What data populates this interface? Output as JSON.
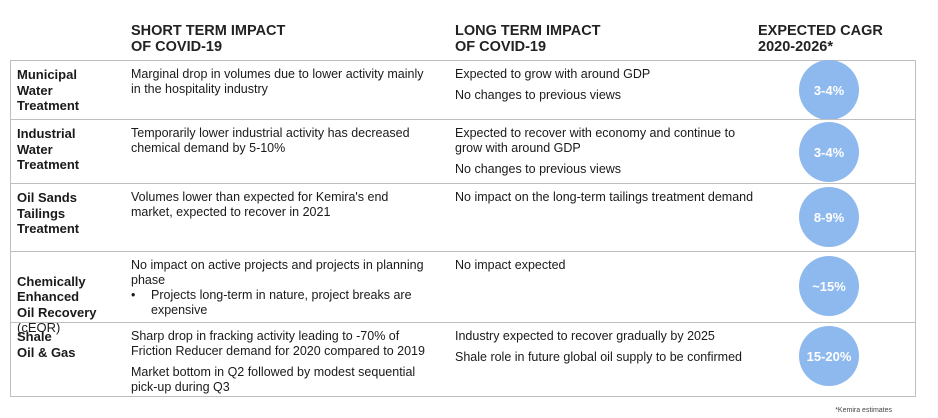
{
  "headers": {
    "short": "SHORT TERM IMPACT\nOF COVID-19",
    "long": "LONG TERM IMPACT\nOF COVID-19",
    "cagr": "EXPECTED CAGR\n2020-2026*"
  },
  "rows": [
    {
      "category": "Municipal\nWater\nTreatment",
      "short": [
        "Marginal drop in volumes due to lower activity mainly in the hospitality industry"
      ],
      "long": [
        "Expected to grow with around GDP",
        "No changes to previous views"
      ],
      "cagr": "3-4%"
    },
    {
      "category": "Industrial\nWater\nTreatment",
      "short": [
        "Temporarily lower industrial activity has decreased chemical demand by 5-10%"
      ],
      "long": [
        "Expected to recover with economy and continue to grow with around GDP",
        "No changes to previous views"
      ],
      "cagr": "3-4%"
    },
    {
      "category": "Oil Sands\nTailings\nTreatment",
      "short": [
        "Volumes lower than expected for Kemira's end market, expected to recover in 2021"
      ],
      "long": [
        "No impact on the long-term tailings treatment demand"
      ],
      "cagr": "8-9%"
    },
    {
      "category": "Chemically\nEnhanced\nOil Recovery",
      "category_sub": "(cEOR)",
      "short": [
        "No impact on active projects and projects in planning phase"
      ],
      "short_bullet": "Projects long-term in nature, project breaks are expensive",
      "bullet_char": "•",
      "long": [
        "No impact expected"
      ],
      "cagr": "~15%"
    },
    {
      "category": "Shale\nOil & Gas",
      "short": [
        "Sharp drop in fracking activity leading to -70% of Friction Reducer demand for 2020 compared to 2019",
        "Market bottom in Q2 followed by modest sequential pick-up during Q3"
      ],
      "long": [
        "Industry expected to recover gradually by 2025",
        "Shale role in future global oil supply to be confirmed"
      ],
      "cagr": "15-20%"
    }
  ],
  "footnote": "*Kemira estimates",
  "colors": {
    "circle": "#8eb9ee",
    "border": "#bfbfbf"
  }
}
